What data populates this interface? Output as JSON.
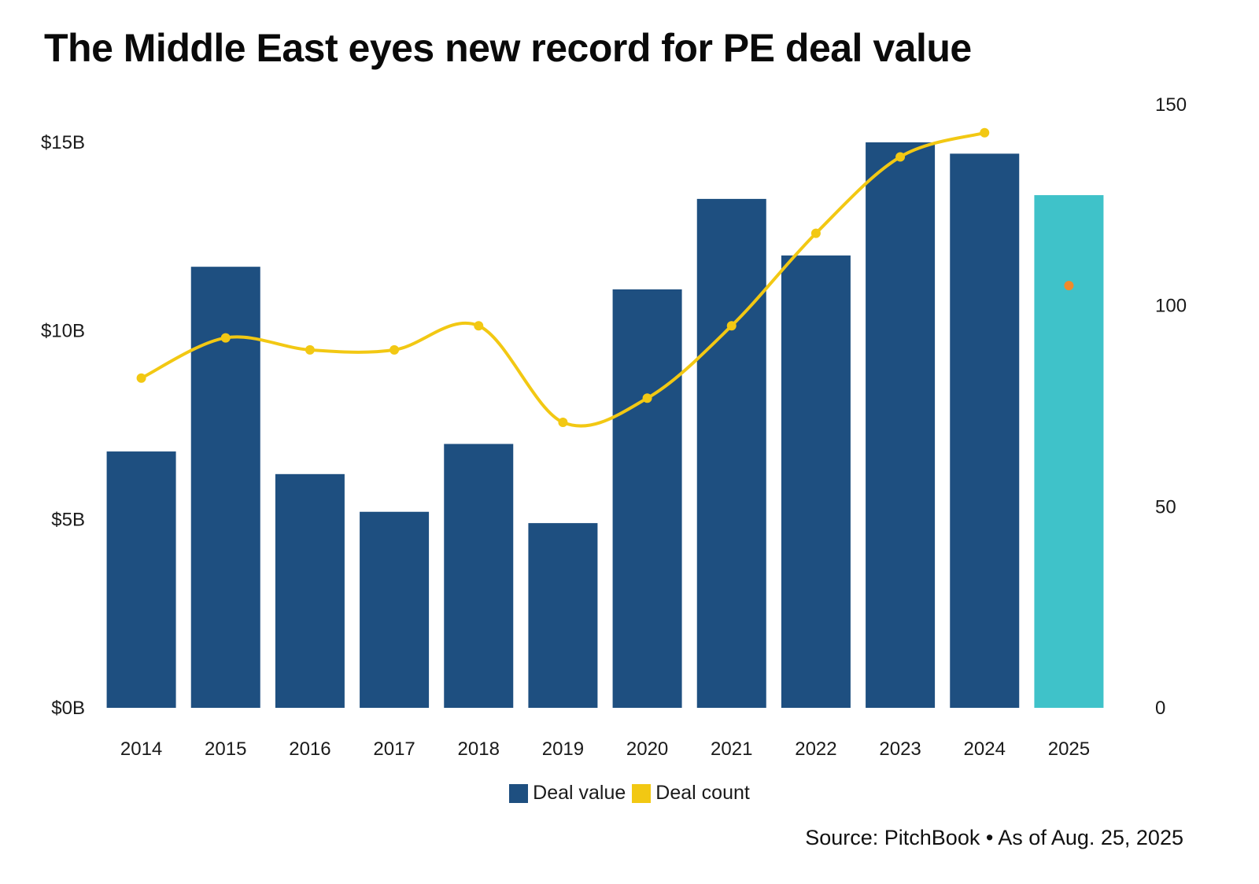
{
  "colors": {
    "bar": "#1e4f80",
    "bar_highlight": "#3fc2c9",
    "line": "#f2c813",
    "partial_point": "#f08a2c"
  },
  "legend": {
    "deal_value_label": "Deal value",
    "deal_count_label": "Deal count"
  },
  "source": "Source: PitchBook • As of Aug. 25, 2025",
  "chart_data": {
    "type": "bar",
    "title": "The Middle East eyes new record for PE deal value",
    "categories": [
      "2014",
      "2015",
      "2016",
      "2017",
      "2018",
      "2019",
      "2020",
      "2021",
      "2022",
      "2023",
      "2024",
      "2025"
    ],
    "series": [
      {
        "name": "Deal value",
        "axis": "left",
        "unit": "USD billions",
        "values": [
          6.8,
          11.7,
          6.2,
          5.2,
          7.0,
          4.9,
          11.1,
          13.5,
          12.0,
          15.0,
          14.7,
          13.6
        ]
      },
      {
        "name": "Deal count",
        "type": "line",
        "axis": "right",
        "values": [
          82,
          92,
          89,
          89,
          95,
          71,
          77,
          95,
          118,
          137,
          143,
          105
        ]
      }
    ],
    "highlight_category": "2025",
    "left_axis": {
      "ylim": [
        0,
        16
      ],
      "ticks": [
        0,
        5,
        10,
        15
      ],
      "tick_labels": [
        "$0B",
        "$5B",
        "$10B",
        "$15B"
      ]
    },
    "right_axis": {
      "ylim": [
        0,
        150
      ],
      "ticks": [
        0,
        50,
        100,
        150
      ],
      "tick_labels": [
        "0",
        "50",
        "100",
        "150"
      ]
    },
    "grid": false,
    "legend_position": "bottom-center"
  }
}
